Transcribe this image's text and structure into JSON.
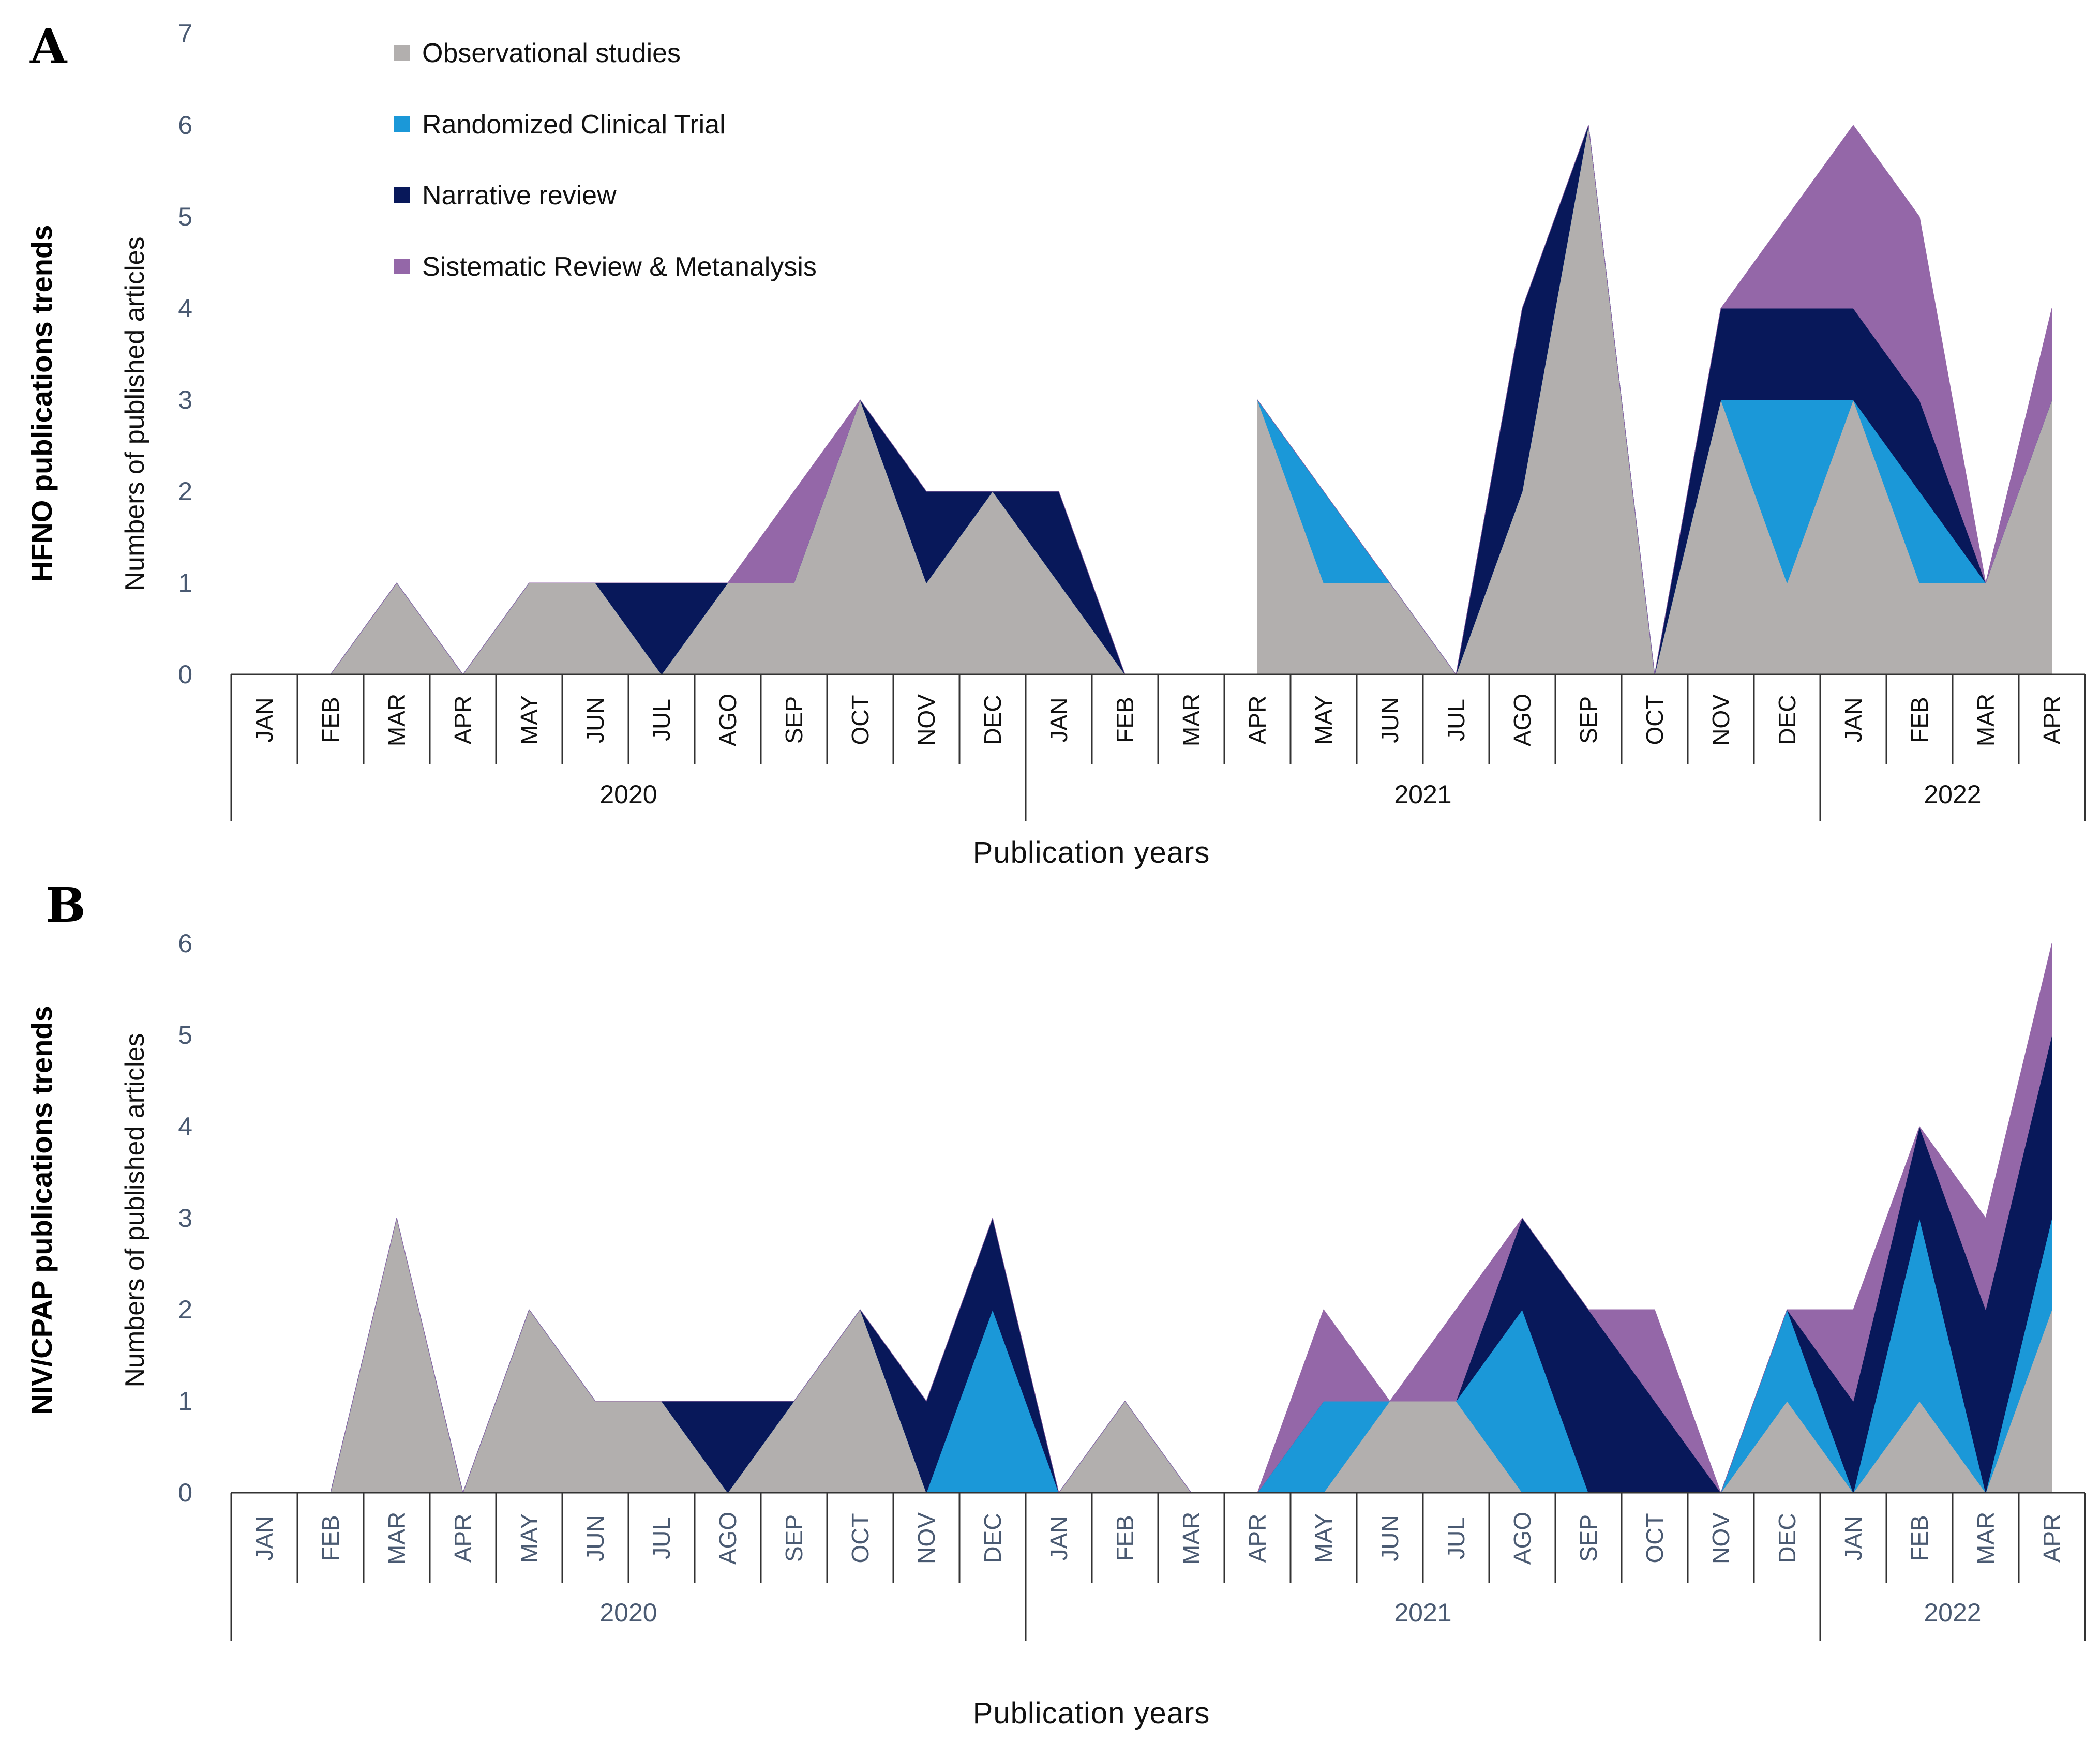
{
  "legend": [
    {
      "name": "Observational studies",
      "color": "#b2afae"
    },
    {
      "name": "Randomized Clinical Trial",
      "color": "#1b98d8"
    },
    {
      "name": "Narrative review",
      "color": "#08185a"
    },
    {
      "name": "Sistematic Review & Metanalysis",
      "color": "#9467a8"
    }
  ],
  "chart_data": [
    {
      "panel": "A",
      "type": "area",
      "stacked": true,
      "side_title": "HFNO publications trends",
      "ylabel": "Numbers of published articles",
      "xlabel": "Publication years",
      "ylim": [
        0,
        7
      ],
      "yticks": [
        0,
        1,
        2,
        3,
        4,
        5,
        6,
        7
      ],
      "categories": [
        "JAN",
        "FEB",
        "MAR",
        "APR",
        "MAY",
        "JUN",
        "JUL",
        "AGO",
        "SEP",
        "OCT",
        "NOV",
        "DEC",
        "JAN",
        "FEB",
        "MAR",
        "APR",
        "MAY",
        "JUN",
        "JUL",
        "AGO",
        "SEP",
        "OCT",
        "NOV",
        "DEC",
        "JAN",
        "FEB",
        "MAR",
        "APR"
      ],
      "years": [
        {
          "label": "2020",
          "start": 0,
          "end": 12
        },
        {
          "label": "2021",
          "start": 12,
          "end": 24
        },
        {
          "label": "2022",
          "start": 24,
          "end": 28
        }
      ],
      "series": [
        {
          "name": "Observational studies",
          "values": [
            null,
            0,
            1,
            0,
            1,
            1,
            0,
            1,
            1,
            3,
            1,
            2,
            1,
            0,
            null,
            3,
            1,
            1,
            0,
            2,
            6,
            0,
            3,
            1,
            3,
            1,
            1,
            3
          ]
        },
        {
          "name": "Randomized Clinical Trial",
          "values": [
            null,
            0,
            0,
            0,
            0,
            0,
            0,
            0,
            0,
            0,
            0,
            0,
            0,
            0,
            null,
            0,
            1,
            0,
            0,
            0,
            0,
            0,
            0,
            2,
            0,
            1,
            0,
            0
          ]
        },
        {
          "name": "Narrative review",
          "values": [
            null,
            0,
            0,
            0,
            0,
            0,
            1,
            0,
            0,
            0,
            1,
            0,
            1,
            0,
            null,
            0,
            0,
            0,
            0,
            2,
            0,
            0,
            1,
            1,
            1,
            1,
            0,
            0
          ]
        },
        {
          "name": "Sistematic Review & Metanalysis",
          "values": [
            null,
            0,
            0,
            0,
            0,
            0,
            0,
            0,
            1,
            0,
            0,
            0,
            0,
            0,
            null,
            0,
            0,
            0,
            0,
            0,
            0,
            0,
            0,
            1,
            2,
            2,
            0,
            1
          ]
        }
      ]
    },
    {
      "panel": "B",
      "type": "area",
      "stacked": true,
      "side_title": "NIV/CPAP publications trends",
      "ylabel": "Numbers of published articles",
      "xlabel": "Publication years",
      "ylim": [
        0,
        6
      ],
      "yticks": [
        0,
        1,
        2,
        3,
        4,
        5,
        6
      ],
      "categories": [
        "JAN",
        "FEB",
        "MAR",
        "APR",
        "MAY",
        "JUN",
        "JUL",
        "AGO",
        "SEP",
        "OCT",
        "NOV",
        "DEC",
        "JAN",
        "FEB",
        "MAR",
        "APR",
        "MAY",
        "JUN",
        "JUL",
        "AGO",
        "SEP",
        "OCT",
        "NOV",
        "DEC",
        "JAN",
        "FEB",
        "MAR",
        "APR"
      ],
      "years": [
        {
          "label": "2020",
          "start": 0,
          "end": 12
        },
        {
          "label": "2021",
          "start": 12,
          "end": 24
        },
        {
          "label": "2022",
          "start": 24,
          "end": 28
        }
      ],
      "series": [
        {
          "name": "Observational studies",
          "values": [
            null,
            0,
            3,
            0,
            2,
            1,
            1,
            0,
            1,
            2,
            0,
            0,
            0,
            1,
            0,
            0,
            0,
            1,
            1,
            0,
            0,
            0,
            0,
            1,
            0,
            1,
            0,
            2
          ]
        },
        {
          "name": "Randomized Clinical Trial",
          "values": [
            null,
            0,
            0,
            0,
            0,
            0,
            0,
            0,
            0,
            0,
            0,
            2,
            0,
            0,
            0,
            0,
            1,
            0,
            0,
            2,
            0,
            0,
            0,
            1,
            0,
            2,
            0,
            1
          ]
        },
        {
          "name": "Narrative review",
          "values": [
            null,
            0,
            0,
            0,
            0,
            0,
            0,
            1,
            0,
            0,
            1,
            1,
            0,
            0,
            0,
            0,
            0,
            0,
            0,
            1,
            2,
            1,
            0,
            0,
            1,
            1,
            2,
            2
          ]
        },
        {
          "name": "Sistematic Review & Metanalysis",
          "values": [
            null,
            0,
            0,
            0,
            0,
            0,
            0,
            0,
            0,
            0,
            0,
            0,
            0,
            0,
            0,
            0,
            1,
            0,
            1,
            0,
            0,
            1,
            0,
            0,
            1,
            0,
            1,
            1
          ]
        }
      ]
    }
  ]
}
